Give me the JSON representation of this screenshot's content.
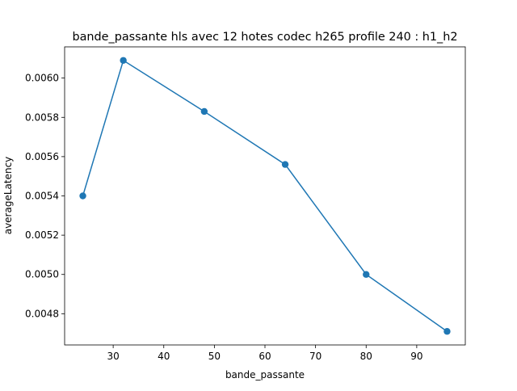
{
  "chart_data": {
    "type": "line",
    "title": "bande_passante hls avec 12 hotes codec h265 profile 240 : h1_h2",
    "xlabel": "bande_passante",
    "ylabel": "averageLatency",
    "x": [
      24,
      32,
      48,
      64,
      80,
      96
    ],
    "series": [
      {
        "values": [
          0.0054,
          0.00609,
          0.00583,
          0.00556,
          0.005,
          0.00471
        ]
      }
    ],
    "xlim": [
      20.4,
      99.6
    ],
    "ylim": [
      0.004641,
      0.006159
    ],
    "xticks": [
      30,
      40,
      50,
      60,
      70,
      80,
      90
    ],
    "xtick_labels": [
      "30",
      "40",
      "50",
      "60",
      "70",
      "80",
      "90"
    ],
    "yticks": [
      0.0048,
      0.005,
      0.0052,
      0.0054,
      0.0056,
      0.0058,
      0.006
    ],
    "ytick_labels": [
      "0.0048",
      "0.0050",
      "0.0052",
      "0.0054",
      "0.0056",
      "0.0058",
      "0.0060"
    ],
    "grid": false,
    "markers": "circle",
    "color": "#1f77b4"
  }
}
